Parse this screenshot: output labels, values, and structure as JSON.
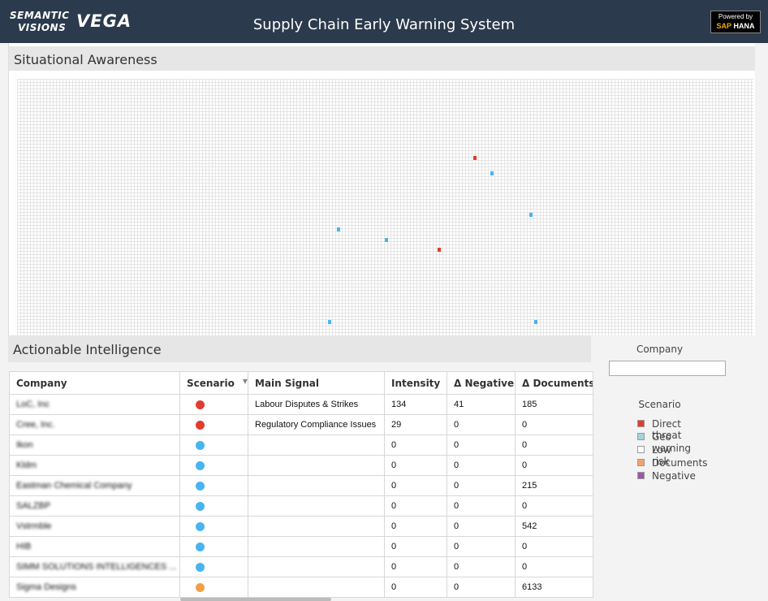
{
  "header": {
    "logo_line1": "SEMANTIC",
    "logo_line2": "VISIONS",
    "logo_mark": "VEGA",
    "title": "Supply Chain Early Warning System",
    "badge_line1": "Powered by",
    "badge_sap": "SAP",
    "badge_hana": "HANA"
  },
  "situational": {
    "title": "Situational Awareness"
  },
  "actionable": {
    "title": "Actionable Intelligence",
    "columns": [
      "Company",
      "Scenario",
      "Main Signal",
      "Intensity",
      "Δ Negative",
      "Δ Documents"
    ],
    "rows": [
      {
        "company": "LoC, Inc",
        "scenario_color": "#e43b2f",
        "signal": "Labour Disputes & Strikes",
        "intensity": "134",
        "negative": "41",
        "documents": "185"
      },
      {
        "company": "Cree, Inc.",
        "scenario_color": "#e43b2f",
        "signal": "Regulatory Compliance Issues",
        "intensity": "29",
        "negative": "0",
        "documents": "0"
      },
      {
        "company": "Ikon",
        "scenario_color": "#49b4f2",
        "signal": "",
        "intensity": "0",
        "negative": "0",
        "documents": "0"
      },
      {
        "company": "Kldm",
        "scenario_color": "#49b4f2",
        "signal": "",
        "intensity": "0",
        "negative": "0",
        "documents": "0"
      },
      {
        "company": "Eastman Chemical Company",
        "scenario_color": "#49b4f2",
        "signal": "",
        "intensity": "0",
        "negative": "0",
        "documents": "215"
      },
      {
        "company": "SALZBP",
        "scenario_color": "#49b4f2",
        "signal": "",
        "intensity": "0",
        "negative": "0",
        "documents": "0"
      },
      {
        "company": "Vstrmble",
        "scenario_color": "#49b4f2",
        "signal": "",
        "intensity": "0",
        "negative": "0",
        "documents": "542"
      },
      {
        "company": "HIB",
        "scenario_color": "#49b4f2",
        "signal": "",
        "intensity": "0",
        "negative": "0",
        "documents": "0"
      },
      {
        "company": "SIMM SOLUTIONS INTELLIGENCES ...",
        "scenario_color": "#49b4f2",
        "signal": "",
        "intensity": "0",
        "negative": "0",
        "documents": "0"
      },
      {
        "company": "Sigma Designs",
        "scenario_color": "#f2a045",
        "signal": "",
        "intensity": "0",
        "negative": "0",
        "documents": "6133"
      }
    ]
  },
  "filters": {
    "company_label": "Company",
    "company_value": "",
    "scenario_label": "Scenario",
    "legend": [
      {
        "label": "Direct threat",
        "color": "#e43b2f"
      },
      {
        "label": "Geo warning",
        "color": "#9fd6df"
      },
      {
        "label": "Low risk",
        "color": "#ffffff"
      },
      {
        "label": "Documents",
        "color": "#f2a46a"
      },
      {
        "label": "Negative",
        "color": "#9b59a6"
      }
    ]
  }
}
